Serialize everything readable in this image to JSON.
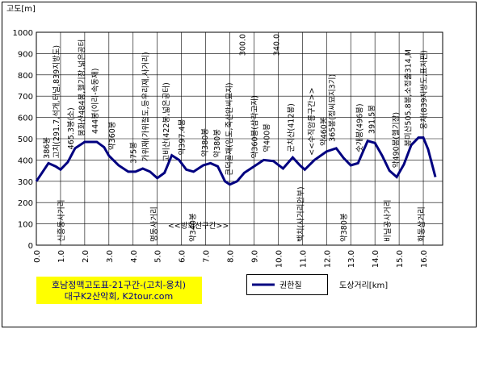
{
  "chart_data": {
    "type": "line",
    "title": "호남정맥고도표-21구간-(고치-웅치)",
    "subtitle": "대구K2산악회, K2tour.com",
    "y_label": "고도[m]",
    "x_label": "도상거리[km]",
    "xlim": [
      0,
      16.8
    ],
    "ylim": [
      0,
      1000
    ],
    "xticks": [
      {
        "value": 0,
        "label": "0.0"
      },
      {
        "value": 1,
        "label": "1.0"
      },
      {
        "value": 2,
        "label": "2.0"
      },
      {
        "value": 3,
        "label": "3.0"
      },
      {
        "value": 4,
        "label": "4.0"
      },
      {
        "value": 5,
        "label": "5.0"
      },
      {
        "value": 6,
        "label": "6.0"
      },
      {
        "value": 7,
        "label": "7.0"
      },
      {
        "value": 8,
        "label": "8.0"
      },
      {
        "value": 9,
        "label": "9.0"
      },
      {
        "value": 10,
        "label": "10.0"
      },
      {
        "value": 11,
        "label": "11.0"
      },
      {
        "value": 12,
        "label": "12.0"
      },
      {
        "value": 13,
        "label": "13.0"
      },
      {
        "value": 14,
        "label": "14.0"
      },
      {
        "value": 15,
        "label": "15.0"
      },
      {
        "value": 16,
        "label": "16.0"
      }
    ],
    "yticks": [
      0,
      100,
      200,
      300,
      400,
      500,
      600,
      700,
      800,
      900,
      1000
    ],
    "grid": true,
    "x": [
      0,
      0.5,
      0.8,
      1.0,
      1.3,
      1.6,
      2.0,
      2.5,
      2.8,
      3.0,
      3.4,
      3.8,
      4.1,
      4.4,
      4.7,
      5.0,
      5.3,
      5.6,
      5.9,
      6.2,
      6.5,
      6.9,
      7.2,
      7.5,
      7.8,
      8.0,
      8.3,
      8.6,
      9.0,
      9.4,
      9.8,
      10.2,
      10.6,
      10.9,
      11.1,
      11.5,
      12.0,
      12.4,
      12.7,
      13.0,
      13.3,
      13.7,
      14.0,
      14.3,
      14.6,
      14.9,
      15.2,
      15.5,
      15.8,
      16.0,
      16.2,
      16.5
    ],
    "series": [
      {
        "name": "권한칠",
        "color": "#000080",
        "values": [
          300,
          385,
          370,
          355,
          390,
          455,
          485,
          485,
          460,
          420,
          375,
          345,
          345,
          360,
          345,
          315,
          340,
          422,
          400,
          355,
          345,
          375,
          385,
          370,
          300,
          285,
          300,
          340,
          370,
          400,
          395,
          360,
          412,
          375,
          355,
          400,
          440,
          455,
          410,
          375,
          385,
          490,
          480,
          420,
          350,
          320,
          380,
          470,
          505,
          505,
          450,
          320
        ]
      }
    ],
    "annotations": [
      {
        "text": "고치(291.7,석개,터널,839지방도)",
        "x": 0.8,
        "side": "above"
      },
      {
        "text": "386봉",
        "x": 0.4,
        "side": "above"
      },
      {
        "text": "465.3봉(소)",
        "x": 1.4,
        "side": "above"
      },
      {
        "text": "봉화산484봉,헬기장,넓은공터",
        "x": 1.85,
        "side": "above"
      },
      {
        "text": "444봉(이리-속동재)",
        "x": 2.4,
        "side": "above"
      },
      {
        "text": "약360봉",
        "x": 3.1,
        "side": "above"
      },
      {
        "text": "375봉",
        "x": 4.0,
        "side": "above"
      },
      {
        "text": "가위재(가위절도,등우리재,사거리)",
        "x": 4.5,
        "side": "above"
      },
      {
        "text": "고비산(422봉,넓은공터)",
        "x": 5.35,
        "side": "above"
      },
      {
        "text": "약397.4봉",
        "x": 6.0,
        "side": "above"
      },
      {
        "text": "약380봉",
        "x": 6.95,
        "side": "above"
      },
      {
        "text": "약380봉",
        "x": 7.45,
        "side": "above"
      },
      {
        "text": "큰덕골재(임도,죽산안씨묘지)",
        "x": 7.95,
        "side": "above"
      },
      {
        "text": "300.0",
        "x": 8.5,
        "side": "top"
      },
      {
        "text": "약360봉(삼각고지)",
        "x": 9.0,
        "side": "above"
      },
      {
        "text": "약400봉",
        "x": 9.5,
        "side": "above"
      },
      {
        "text": "340.0",
        "x": 9.9,
        "side": "top"
      },
      {
        "text": "군치산(412봉)",
        "x": 10.5,
        "side": "above"
      },
      {
        "text": "<<수직암릉구간>>",
        "x": 11.35,
        "side": "above"
      },
      {
        "text": "약460봉",
        "x": 11.85,
        "side": "above"
      },
      {
        "text": "365봉(정씨묘지3기)",
        "x": 12.2,
        "side": "above"
      },
      {
        "text": "숫개봉(496봉)",
        "x": 13.35,
        "side": "above"
      },
      {
        "text": "391.5봉",
        "x": 13.85,
        "side": "above"
      },
      {
        "text": "약490봉(헬기장)",
        "x": 14.85,
        "side": "above"
      },
      {
        "text": "봉미산505.8봉,소정출314,M",
        "x": 15.35,
        "side": "above"
      },
      {
        "text": "웅치(839지방도,표지판)",
        "x": 16.0,
        "side": "above"
      },
      {
        "text": "신흥동사거리",
        "x": 1.0,
        "side": "below"
      },
      {
        "text": "명동사거리",
        "x": 4.85,
        "side": "below"
      },
      {
        "text": "약340봉",
        "x": 6.45,
        "side": "below"
      },
      {
        "text": "백치(사거리안부)",
        "x": 10.9,
        "side": "below"
      },
      {
        "text": "약380봉",
        "x": 12.7,
        "side": "below"
      },
      {
        "text": "비닐공사거리",
        "x": 14.5,
        "side": "below"
      },
      {
        "text": "화동삼거리",
        "x": 15.9,
        "side": "below"
      },
      {
        "text": "<<방화선구간>>",
        "x": 6.7,
        "side": "horizontal"
      }
    ]
  }
}
